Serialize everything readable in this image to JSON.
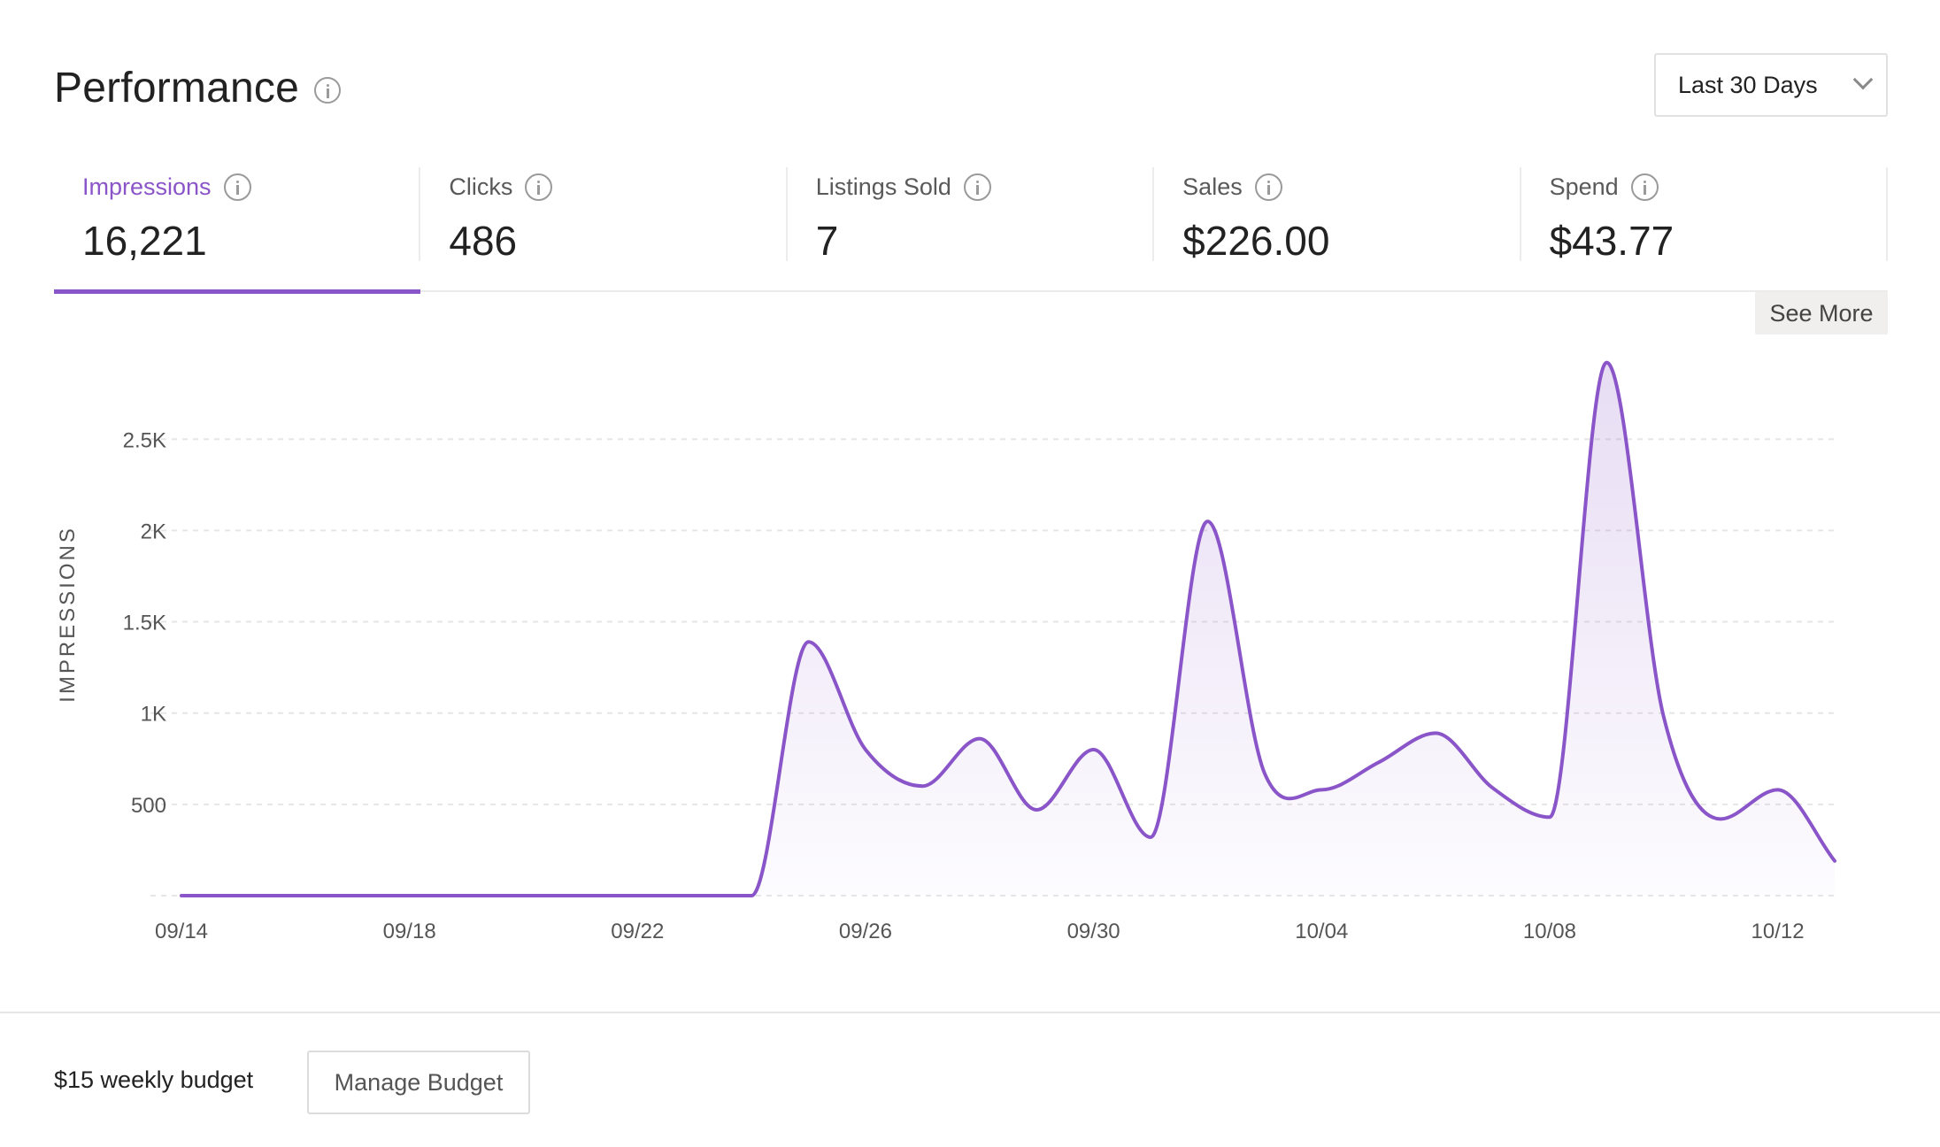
{
  "header": {
    "title": "Performance",
    "range_select": {
      "value": "Last 30 Days"
    }
  },
  "metrics": [
    {
      "label": "Impressions",
      "value": "16,221",
      "active": true
    },
    {
      "label": "Clicks",
      "value": "486",
      "active": false
    },
    {
      "label": "Listings Sold",
      "value": "7",
      "active": false
    },
    {
      "label": "Sales",
      "value": "$226.00",
      "active": false
    },
    {
      "label": "Spend",
      "value": "$43.77",
      "active": false
    }
  ],
  "see_more_label": "See More",
  "footer": {
    "budget_text": "$15 weekly budget",
    "manage_label": "Manage Budget"
  },
  "colors": {
    "accent": "#8a55c8",
    "grid": "#e6e6e6"
  },
  "chart_data": {
    "type": "area",
    "ylabel": "IMPRESSIONS",
    "ylim": [
      0,
      2900
    ],
    "yticks": [
      500,
      1000,
      1500,
      2000,
      2500
    ],
    "ytick_labels": [
      "500",
      "1K",
      "1.5K",
      "2K",
      "2.5K"
    ],
    "x_tick_labels": [
      "09/14",
      "09/18",
      "09/22",
      "09/26",
      "09/30",
      "10/04",
      "10/08",
      "10/12"
    ],
    "x": [
      "09/14",
      "09/15",
      "09/16",
      "09/17",
      "09/18",
      "09/19",
      "09/20",
      "09/21",
      "09/22",
      "09/23",
      "09/24",
      "09/25",
      "09/26",
      "09/27",
      "09/28",
      "09/29",
      "09/30",
      "10/01",
      "10/02",
      "10/03",
      "10/04",
      "10/05",
      "10/06",
      "10/07",
      "10/08",
      "10/09",
      "10/10",
      "10/11",
      "10/12",
      "10/13"
    ],
    "series": [
      {
        "values": [
          0,
          0,
          0,
          0,
          0,
          0,
          0,
          0,
          0,
          0,
          0,
          1390,
          800,
          600,
          860,
          470,
          800,
          320,
          2050,
          670,
          580,
          730,
          890,
          590,
          430,
          2920,
          980,
          420,
          580,
          190
        ]
      }
    ],
    "grid": true,
    "legend": "none"
  }
}
